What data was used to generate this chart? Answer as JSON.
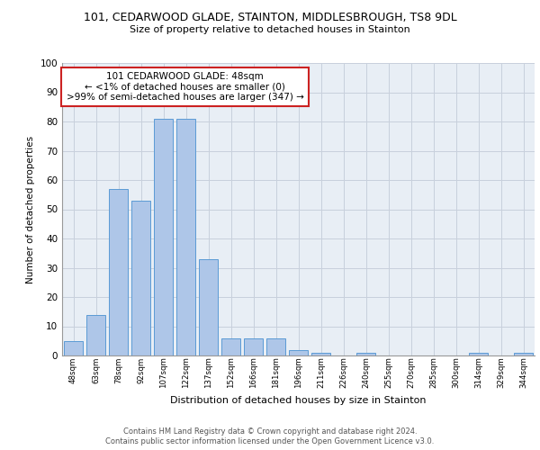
{
  "title_line1": "101, CEDARWOOD GLADE, STAINTON, MIDDLESBROUGH, TS8 9DL",
  "title_line2": "Size of property relative to detached houses in Stainton",
  "xlabel": "Distribution of detached houses by size in Stainton",
  "ylabel": "Number of detached properties",
  "categories": [
    "48sqm",
    "63sqm",
    "78sqm",
    "92sqm",
    "107sqm",
    "122sqm",
    "137sqm",
    "152sqm",
    "166sqm",
    "181sqm",
    "196sqm",
    "211sqm",
    "226sqm",
    "240sqm",
    "255sqm",
    "270sqm",
    "285sqm",
    "300sqm",
    "314sqm",
    "329sqm",
    "344sqm"
  ],
  "values": [
    5,
    14,
    57,
    53,
    81,
    81,
    33,
    6,
    6,
    6,
    2,
    1,
    0,
    1,
    0,
    0,
    0,
    0,
    1,
    0,
    1
  ],
  "bar_color": "#aec6e8",
  "bar_edge_color": "#5b9bd5",
  "annotation_text": "101 CEDARWOOD GLADE: 48sqm\n← <1% of detached houses are smaller (0)\n>99% of semi-detached houses are larger (347) →",
  "annotation_box_color": "#ffffff",
  "annotation_box_edge_color": "#cc2222",
  "ylim": [
    0,
    100
  ],
  "yticks": [
    0,
    10,
    20,
    30,
    40,
    50,
    60,
    70,
    80,
    90,
    100
  ],
  "grid_color": "#c8d0dc",
  "background_color": "#e8eef5",
  "footer_line1": "Contains HM Land Registry data © Crown copyright and database right 2024.",
  "footer_line2": "Contains public sector information licensed under the Open Government Licence v3.0."
}
